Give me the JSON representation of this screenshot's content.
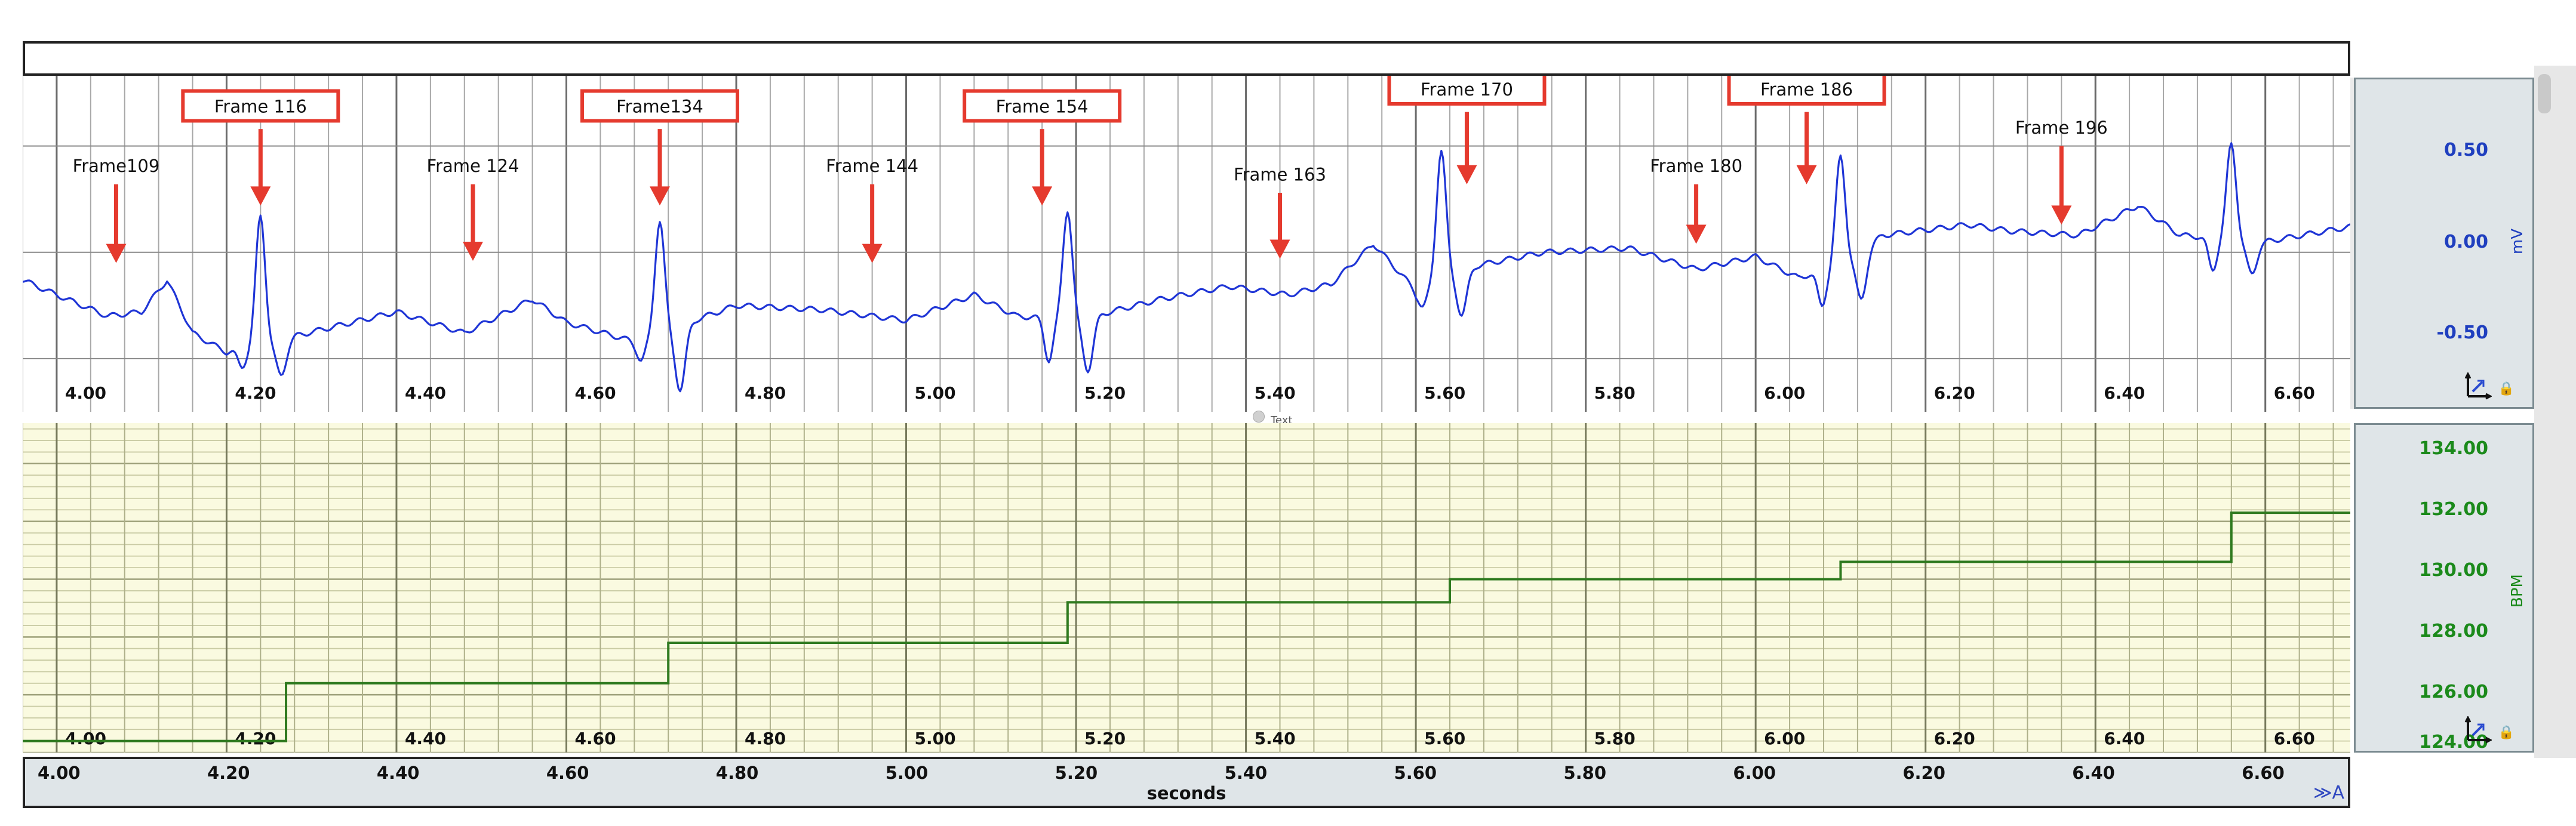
{
  "chart_data": [
    {
      "type": "line",
      "xlim": [
        3.96,
        6.7
      ],
      "ylim": [
        -0.75,
        0.83
      ],
      "y_unit": "mV",
      "y_ticks": [
        "0.50",
        "0.00",
        "-0.50"
      ],
      "y_tick_values": [
        0.5,
        0.0,
        -0.5
      ],
      "x_ticks": [
        "4.00",
        "4.20",
        "4.40",
        "4.60",
        "4.80",
        "5.00",
        "5.20",
        "5.40",
        "5.60",
        "5.80",
        "6.00",
        "6.20",
        "6.40",
        "6.60"
      ],
      "grid": true,
      "line_color": "#1f35d6",
      "baseline": [
        [
          3.96,
          -0.13
        ],
        [
          4.0,
          -0.2
        ],
        [
          4.06,
          -0.3
        ],
        [
          4.1,
          -0.28
        ],
        [
          4.13,
          -0.13
        ],
        [
          4.16,
          -0.38
        ],
        [
          4.2,
          -0.47
        ],
        [
          4.4,
          -0.28
        ],
        [
          4.48,
          -0.38
        ],
        [
          4.56,
          -0.22
        ],
        [
          4.6,
          -0.33
        ],
        [
          4.68,
          -0.42
        ],
        [
          4.8,
          -0.25
        ],
        [
          4.9,
          -0.27
        ],
        [
          5.0,
          -0.32
        ],
        [
          5.08,
          -0.2
        ],
        [
          5.13,
          -0.3
        ],
        [
          5.2,
          -0.32
        ],
        [
          5.3,
          -0.22
        ],
        [
          5.38,
          -0.16
        ],
        [
          5.45,
          -0.2
        ],
        [
          5.5,
          -0.15
        ],
        [
          5.55,
          0.04
        ],
        [
          5.6,
          -0.18
        ],
        [
          5.65,
          -0.08
        ],
        [
          5.75,
          0.0
        ],
        [
          5.85,
          0.02
        ],
        [
          5.93,
          -0.08
        ],
        [
          6.0,
          -0.02
        ],
        [
          6.05,
          -0.12
        ],
        [
          6.1,
          -0.06
        ],
        [
          6.15,
          0.08
        ],
        [
          6.25,
          0.13
        ],
        [
          6.3,
          0.1
        ],
        [
          6.38,
          0.08
        ],
        [
          6.45,
          0.22
        ],
        [
          6.5,
          0.08
        ],
        [
          6.6,
          0.05
        ],
        [
          6.7,
          0.12
        ]
      ],
      "qrs": [
        {
          "t": 4.24,
          "r": 0.17,
          "q": -0.55,
          "s": -0.6
        },
        {
          "t": 4.71,
          "r": 0.15,
          "q": -0.52,
          "s": -0.68
        },
        {
          "t": 5.19,
          "r": 0.2,
          "q": -0.53,
          "s": -0.58
        },
        {
          "t": 5.63,
          "r": 0.48,
          "q": -0.27,
          "s": -0.32
        },
        {
          "t": 6.1,
          "r": 0.45,
          "q": -0.27,
          "s": -0.25
        },
        {
          "t": 6.56,
          "r": 0.51,
          "q": -0.1,
          "s": -0.12
        }
      ],
      "annotations": [
        {
          "label": "Frame109",
          "x": 4.07,
          "boxed": false,
          "label_y": 0.4,
          "arrow_from": 0.32,
          "arrow_to": -0.05
        },
        {
          "label": "Frame 116",
          "x": 4.24,
          "boxed": true,
          "label_y": 0.68,
          "arrow_from": 0.58,
          "arrow_to": 0.22
        },
        {
          "label": "Frame 124",
          "x": 4.49,
          "boxed": false,
          "label_y": 0.4,
          "arrow_from": 0.32,
          "arrow_to": -0.04
        },
        {
          "label": "Frame134",
          "x": 4.71,
          "boxed": true,
          "label_y": 0.68,
          "arrow_from": 0.58,
          "arrow_to": 0.22
        },
        {
          "label": "Frame 144",
          "x": 4.96,
          "boxed": false,
          "label_y": 0.4,
          "arrow_from": 0.32,
          "arrow_to": -0.05
        },
        {
          "label": "Frame 154",
          "x": 5.16,
          "boxed": true,
          "label_y": 0.68,
          "arrow_from": 0.58,
          "arrow_to": 0.22
        },
        {
          "label": "Frame 163",
          "x": 5.44,
          "boxed": false,
          "label_y": 0.36,
          "arrow_from": 0.28,
          "arrow_to": -0.03
        },
        {
          "label": "Frame 170",
          "x": 5.66,
          "boxed": true,
          "label_y": 0.76,
          "arrow_from": 0.66,
          "arrow_to": 0.32
        },
        {
          "label": "Frame 180",
          "x": 5.93,
          "boxed": false,
          "label_y": 0.4,
          "arrow_from": 0.32,
          "arrow_to": 0.04
        },
        {
          "label": "Frame 186",
          "x": 6.06,
          "boxed": true,
          "label_y": 0.76,
          "arrow_from": 0.66,
          "arrow_to": 0.32
        },
        {
          "label": "Frame 196",
          "x": 6.36,
          "boxed": false,
          "label_y": 0.58,
          "arrow_from": 0.5,
          "arrow_to": 0.13
        }
      ]
    },
    {
      "type": "line",
      "step": true,
      "xlim": [
        3.96,
        6.7
      ],
      "ylim": [
        124.0,
        135.4
      ],
      "y_unit": "BPM",
      "y_ticks": [
        "134.00",
        "132.00",
        "130.00",
        "128.00",
        "126.00",
        "124.00"
      ],
      "y_tick_values": [
        134,
        132,
        130,
        128,
        126,
        124
      ],
      "x_ticks": [
        "4.00",
        "4.20",
        "4.40",
        "4.60",
        "4.80",
        "5.00",
        "5.20",
        "5.40",
        "5.60",
        "5.80",
        "6.00",
        "6.20",
        "6.40",
        "6.60"
      ],
      "grid": true,
      "line_color": "#2f7a1f",
      "x": [
        3.96,
        4.27,
        4.72,
        5.19,
        5.64,
        6.1,
        6.56,
        6.7
      ],
      "y": [
        124.4,
        126.4,
        127.8,
        129.2,
        130.0,
        130.6,
        132.3,
        132.3
      ]
    }
  ],
  "ecg_scale": {
    "ticks": [
      "0.50",
      "0.00",
      "-0.50"
    ],
    "unit": "mV",
    "lock_icon": "lock-icon",
    "autoscale_icon": "autoscale-icon"
  },
  "bpm_scale": {
    "ticks": [
      "134.00",
      "132.00",
      "130.00",
      "128.00",
      "126.00",
      "124.00"
    ],
    "unit": "BPM",
    "lock_icon": "lock-icon",
    "autoscale_icon": "autoscale-icon"
  },
  "time_axis": {
    "ticks": [
      "4.00",
      "4.20",
      "4.40",
      "4.60",
      "4.80",
      "5.00",
      "5.20",
      "5.40",
      "5.60",
      "5.80",
      "6.00",
      "6.20",
      "6.40",
      "6.60"
    ],
    "tick_values": [
      4.0,
      4.2,
      4.4,
      4.6,
      4.8,
      5.0,
      5.2,
      5.4,
      5.6,
      5.8,
      6.0,
      6.2,
      6.4,
      6.6
    ],
    "title": "seconds",
    "controls": "≫A"
  },
  "divider_label": "Text",
  "colors": {
    "ecg_line": "#1f35d6",
    "ecg_tick": "#1f3fbf",
    "bpm_line": "#2f7a1f",
    "bpm_tick": "#1b8a1b",
    "bpm_background": "#fafae0",
    "annotation_red": "#e53a2e",
    "scale_panel": "#dfe5e8"
  }
}
